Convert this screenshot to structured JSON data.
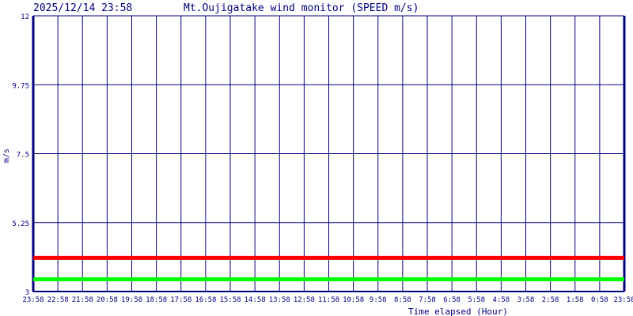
{
  "header": {
    "datetime": "2025/12/14 23:58",
    "title": "Mt.Oujigatake wind monitor (SPEED m/s)"
  },
  "chart_data": {
    "type": "line",
    "title": "Mt.Oujigatake wind monitor (SPEED m/s)",
    "xlabel": "Time elapsed (Hour)",
    "ylabel": "m/s",
    "ylim": [
      3,
      12
    ],
    "yticks": [
      "12",
      "9.75",
      "7.5",
      "5.25",
      "3"
    ],
    "ytick_values": [
      12,
      9.75,
      7.5,
      5.25,
      3
    ],
    "categories": [
      "23:58",
      "22:58",
      "21:58",
      "20:58",
      "19:58",
      "18:58",
      "17:58",
      "16:58",
      "15:58",
      "14:58",
      "13:58",
      "12:58",
      "11:58",
      "10:58",
      "9:58",
      "8:58",
      "7:58",
      "6:58",
      "5:58",
      "4:58",
      "3:58",
      "2:58",
      "1:58",
      "0:58",
      "23:58"
    ],
    "grid": true,
    "series": [
      {
        "color": "#ff0000",
        "values": [
          4.1,
          4.1,
          4.1,
          4.1,
          4.1,
          4.1,
          4.1,
          4.1,
          4.1,
          4.1,
          4.1,
          4.1,
          4.1,
          4.1,
          4.1,
          4.1,
          4.1,
          4.1,
          4.1,
          4.1,
          4.1,
          4.1,
          4.1,
          4.1,
          4.1
        ]
      },
      {
        "color": "#00ff00",
        "values": [
          3.4,
          3.4,
          3.4,
          3.4,
          3.4,
          3.4,
          3.4,
          3.4,
          3.4,
          3.4,
          3.4,
          3.4,
          3.4,
          3.4,
          3.4,
          3.4,
          3.4,
          3.4,
          3.4,
          3.4,
          3.4,
          3.4,
          3.4,
          3.4,
          3.4
        ]
      }
    ],
    "colors": {
      "grid": "#000080",
      "text": "#000080"
    }
  }
}
